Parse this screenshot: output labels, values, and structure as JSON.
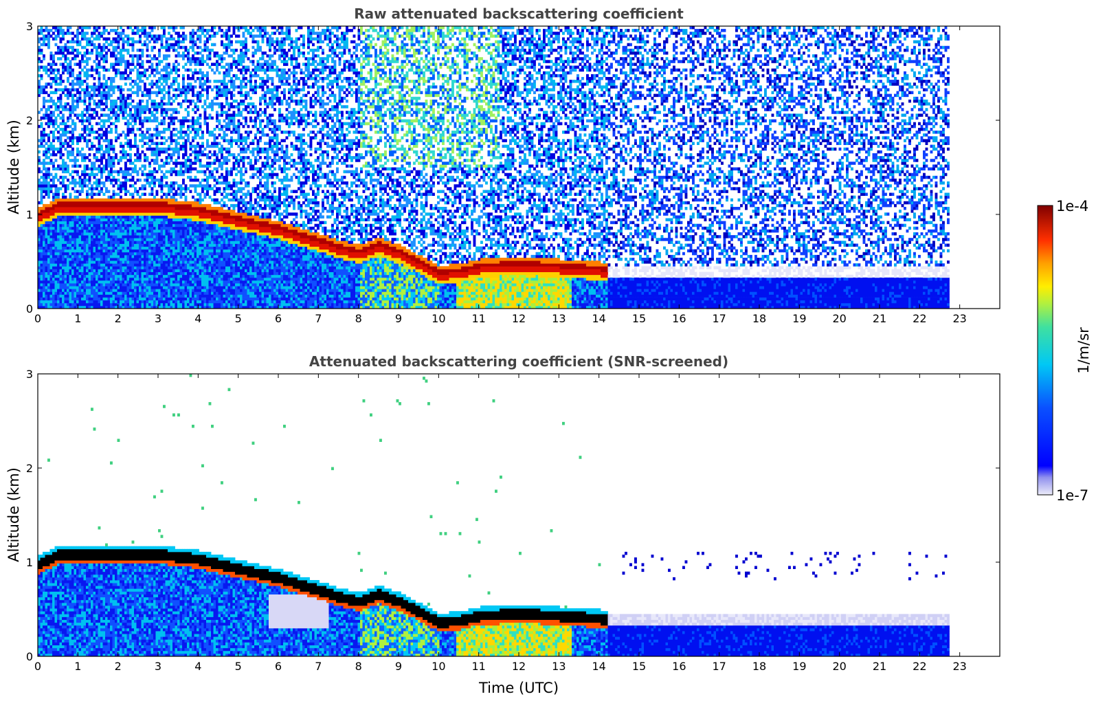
{
  "chart_data": [
    {
      "type": "heatmap",
      "title": "Raw attenuated backscattering coefficient",
      "xlabel": "",
      "ylabel": "Altitude (km)",
      "xlim": [
        0,
        24
      ],
      "ylim": [
        0,
        3
      ],
      "x_ticks": [
        0,
        1,
        2,
        3,
        4,
        5,
        6,
        7,
        8,
        9,
        10,
        11,
        12,
        13,
        14,
        15,
        16,
        17,
        18,
        19,
        20,
        21,
        22,
        23
      ],
      "y_ticks": [
        0,
        1,
        2,
        3
      ],
      "data_end_time": 22.7,
      "layer_top_km": [
        [
          0,
          1.0
        ],
        [
          0.5,
          1.1
        ],
        [
          3,
          1.1
        ],
        [
          4,
          1.05
        ],
        [
          5,
          0.95
        ],
        [
          6,
          0.85
        ],
        [
          7,
          0.72
        ],
        [
          7.5,
          0.65
        ],
        [
          8,
          0.6
        ],
        [
          8.5,
          0.68
        ],
        [
          9,
          0.6
        ],
        [
          10,
          0.38
        ],
        [
          10.5,
          0.4
        ],
        [
          11,
          0.45
        ],
        [
          12,
          0.47
        ],
        [
          13,
          0.45
        ],
        [
          14,
          0.42
        ]
      ],
      "noise_background": "blue-cyan speckle above layer; green-yellow speckle 8-11 h above 1.5 km"
    },
    {
      "type": "heatmap",
      "title": "Attenuated backscattering coefficient (SNR-screened)",
      "xlabel": "Time (UTC)",
      "ylabel": "Altitude (km)",
      "xlim": [
        0,
        24
      ],
      "ylim": [
        0,
        3
      ],
      "x_ticks": [
        0,
        1,
        2,
        3,
        4,
        5,
        6,
        7,
        8,
        9,
        10,
        11,
        12,
        13,
        14,
        15,
        16,
        17,
        18,
        19,
        20,
        21,
        22,
        23
      ],
      "y_ticks": [
        0,
        1,
        2,
        3
      ],
      "data_end_time": 22.7,
      "saturated_color": "#000000",
      "noise_background": "screened (white) above layer"
    }
  ],
  "colorbar": {
    "label": "1/m/sr",
    "max_label": "1e-4",
    "min_label": "1e-7",
    "scale": "log",
    "colormap": "jet"
  },
  "colors": {
    "title": "#444444",
    "low": "#e6e6fa",
    "blue": "#0000ff",
    "cyan": "#00ccff",
    "yellow": "#ffff00",
    "red": "#ff2200",
    "darkred": "#800000"
  }
}
